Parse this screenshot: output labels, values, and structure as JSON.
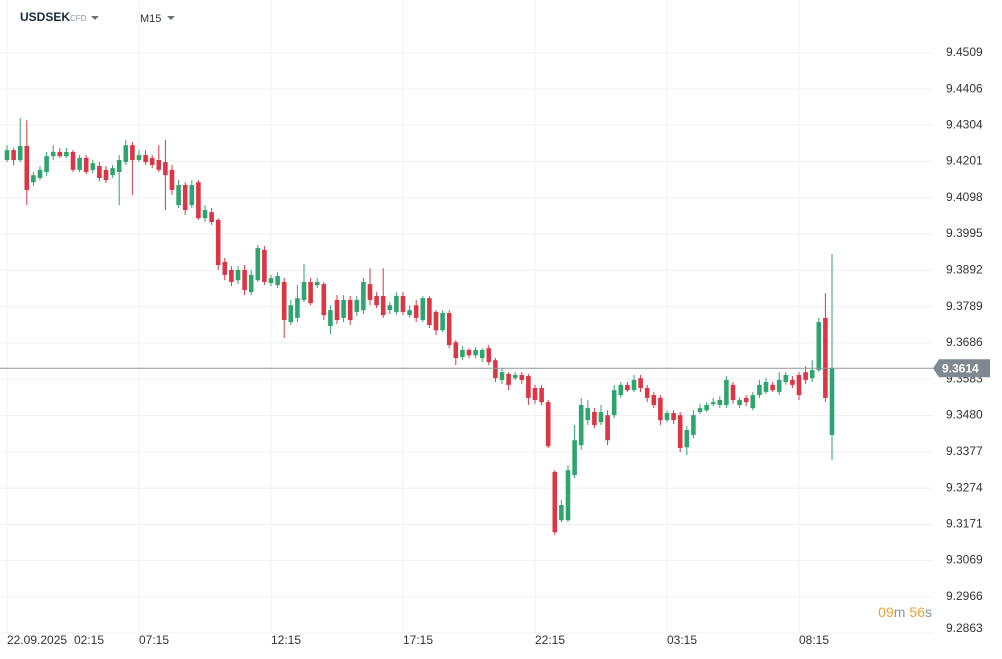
{
  "header": {
    "symbol": "USDSEK",
    "instrument": "CFD",
    "timeframe": "M15"
  },
  "countdown": {
    "minutes": "09",
    "minutes_unit": "m",
    "seconds": "56",
    "seconds_unit": "s"
  },
  "chart_data": {
    "type": "candlestick",
    "date_label": "22.09.2025",
    "x": [
      "02:15",
      null,
      null,
      null,
      null,
      null,
      null,
      null,
      null,
      null,
      null,
      null,
      null,
      null,
      null,
      null,
      null,
      null,
      null,
      null,
      "07:15",
      null,
      null,
      null,
      null,
      null,
      null,
      null,
      null,
      null,
      null,
      null,
      null,
      null,
      null,
      null,
      null,
      null,
      null,
      null,
      "12:15",
      null,
      null,
      null,
      null,
      null,
      null,
      null,
      null,
      null,
      null,
      null,
      null,
      null,
      null,
      null,
      null,
      null,
      null,
      null,
      "17:15",
      null,
      null,
      null,
      null,
      null,
      null,
      null,
      null,
      null,
      null,
      null,
      null,
      null,
      null,
      null,
      null,
      null,
      null,
      null,
      "22:15",
      null,
      null,
      null,
      null,
      null,
      null,
      null,
      null,
      null,
      null,
      null,
      null,
      null,
      null,
      null,
      null,
      null,
      null,
      null,
      "03:15",
      null,
      null,
      null,
      null,
      null,
      null,
      null,
      null,
      null,
      null,
      null,
      null,
      null,
      null,
      null,
      null,
      null,
      null,
      null,
      "08:15",
      null,
      null,
      null,
      null,
      null
    ],
    "open": [
      9.4205,
      9.4233,
      9.4205,
      9.4245,
      9.4142,
      9.4154,
      9.4171,
      9.4216,
      9.4228,
      9.4216,
      9.4228,
      9.4177,
      9.4211,
      9.4177,
      9.4188,
      9.4177,
      9.4162,
      9.4171,
      9.4199,
      9.4247,
      9.4205,
      9.4219,
      9.4211,
      9.4205,
      9.4199,
      9.4177,
      9.4077,
      9.4134,
      9.4077,
      9.4142,
      9.404,
      9.4057,
      9.4035,
      9.3916,
      9.3893,
      9.3864,
      9.3893,
      9.383,
      9.3864,
      9.395,
      9.3856,
      9.385,
      9.3859,
      9.3745,
      9.3757,
      9.3808,
      9.3859,
      9.385,
      9.3853,
      9.3734,
      9.3808,
      9.3757,
      9.3808,
      9.3774,
      9.3779,
      9.3853,
      9.3819,
      9.3819,
      9.3779,
      9.3774,
      9.3819,
      9.3765,
      9.3793,
      9.3751,
      9.3813,
      9.3774,
      9.3722,
      9.3771,
      9.3688,
      9.3646,
      9.3666,
      9.3651,
      9.3643,
      9.3671,
      9.3637,
      9.3581,
      9.3598,
      9.3586,
      9.3595,
      9.3592,
      9.3558,
      9.3558,
      9.3518,
      9.332,
      9.3183,
      9.3183,
      9.3311,
      9.3396,
      9.3467,
      9.349,
      9.3461,
      9.3481,
      9.3481,
      9.3538,
      9.3567,
      9.3552,
      9.3586,
      9.3558,
      9.3538,
      9.353,
      9.3467,
      9.3487,
      9.3481,
      9.339,
      9.3425,
      9.349,
      9.3495,
      9.3512,
      9.351,
      9.351,
      9.3567,
      9.351,
      9.353,
      9.3501,
      9.3538,
      9.3547,
      9.3567,
      9.3547,
      9.3575,
      9.3581,
      9.3595,
      9.3603,
      9.3586,
      9.3609,
      9.3757,
      9.3425
    ],
    "high": [
      9.4247,
      9.4239,
      9.4324,
      9.4318,
      9.4171,
      9.4188,
      9.4228,
      9.4247,
      9.4239,
      9.4239,
      9.4233,
      9.4219,
      9.4219,
      9.4205,
      9.4199,
      9.4188,
      9.4191,
      9.4219,
      9.4262,
      9.4256,
      9.4233,
      9.4233,
      9.4219,
      9.4247,
      9.4262,
      9.4191,
      9.4148,
      9.4142,
      9.4148,
      9.4148,
      9.4077,
      9.4069,
      9.404,
      9.3927,
      9.3904,
      9.3904,
      9.3907,
      9.3893,
      9.3964,
      9.3961,
      9.3879,
      9.3887,
      9.387,
      9.3808,
      9.385,
      9.391,
      9.387,
      9.387,
      9.3859,
      9.3793,
      9.3822,
      9.3822,
      9.3819,
      9.3819,
      9.387,
      9.3898,
      9.383,
      9.3898,
      9.3802,
      9.383,
      9.383,
      9.3793,
      9.3808,
      9.3819,
      9.3819,
      9.3779,
      9.3779,
      9.3779,
      9.3694,
      9.3677,
      9.3671,
      9.3674,
      9.3671,
      9.368,
      9.3643,
      9.3615,
      9.3603,
      9.3603,
      9.3603,
      9.3598,
      9.3567,
      9.3567,
      9.3524,
      9.3325,
      9.324,
      9.3339,
      9.3453,
      9.353,
      9.3524,
      9.3501,
      9.351,
      9.3495,
      9.3567,
      9.3575,
      9.3575,
      9.3595,
      9.3595,
      9.3567,
      9.3547,
      9.3538,
      9.3495,
      9.3495,
      9.349,
      9.345,
      9.3495,
      9.3512,
      9.3518,
      9.353,
      9.3535,
      9.3592,
      9.3575,
      9.3532,
      9.3538,
      9.3547,
      9.3581,
      9.3586,
      9.3575,
      9.3603,
      9.3603,
      9.3592,
      9.3603,
      9.362,
      9.3637,
      9.3757,
      9.3827,
      9.3938
    ],
    "low": [
      9.4199,
      9.4191,
      9.4199,
      9.4077,
      9.4131,
      9.4148,
      9.416,
      9.4205,
      9.4211,
      9.4211,
      9.4171,
      9.4171,
      9.4165,
      9.4168,
      9.4145,
      9.414,
      9.4154,
      9.4077,
      9.4191,
      9.4106,
      9.4199,
      9.4191,
      9.4182,
      9.4171,
      9.4063,
      9.4106,
      9.4069,
      9.4049,
      9.4069,
      9.4035,
      9.4029,
      9.4021,
      9.3893,
      9.3864,
      9.3847,
      9.3853,
      9.3822,
      9.3822,
      9.3859,
      9.385,
      9.3847,
      9.3842,
      9.37,
      9.3737,
      9.3745,
      9.3802,
      9.3793,
      9.3842,
      9.3751,
      9.3711,
      9.374,
      9.3745,
      9.3737,
      9.3762,
      9.3768,
      9.3793,
      9.3785,
      9.3757,
      9.3768,
      9.3765,
      9.3765,
      9.3757,
      9.3745,
      9.3745,
      9.3728,
      9.3708,
      9.3717,
      9.3671,
      9.3623,
      9.3637,
      9.3643,
      9.3643,
      9.3632,
      9.3623,
      9.3575,
      9.357,
      9.3552,
      9.3581,
      9.357,
      9.351,
      9.3513,
      9.351,
      9.3388,
      9.3141,
      9.3178,
      9.3178,
      9.3302,
      9.3382,
      9.3453,
      9.3444,
      9.3453,
      9.3396,
      9.3473,
      9.353,
      9.3547,
      9.3547,
      9.3547,
      9.3518,
      9.3501,
      9.3453,
      9.3461,
      9.3456,
      9.3376,
      9.3368,
      9.3416,
      9.3484,
      9.349,
      9.3507,
      9.3501,
      9.3501,
      9.3513,
      9.3501,
      9.3507,
      9.3495,
      9.353,
      9.3541,
      9.3547,
      9.3538,
      9.3567,
      9.3558,
      9.3524,
      9.357,
      9.3575,
      9.3603,
      9.3518,
      9.3354
    ],
    "close": [
      9.4233,
      9.4205,
      9.4245,
      9.412,
      9.4162,
      9.4177,
      9.4216,
      9.4228,
      9.4216,
      9.4228,
      9.4177,
      9.4211,
      9.4171,
      9.4196,
      9.4154,
      9.4148,
      9.4182,
      9.4205,
      9.4247,
      9.4205,
      9.4219,
      9.4199,
      9.4191,
      9.4177,
      9.4162,
      9.412,
      9.4134,
      9.4063,
      9.4134,
      9.404,
      9.4063,
      9.4029,
      9.3907,
      9.3879,
      9.3859,
      9.3893,
      9.3836,
      9.3879,
      9.3955,
      9.3859,
      9.387,
      9.3876,
      9.3751,
      9.3793,
      9.3813,
      9.3859,
      9.3799,
      9.3859,
      9.3765,
      9.3779,
      9.3751,
      9.3808,
      9.3751,
      9.3808,
      9.3859,
      9.3808,
      9.3793,
      9.3765,
      9.3793,
      9.3819,
      9.3774,
      9.3779,
      9.3757,
      9.3813,
      9.3737,
      9.3722,
      9.3771,
      9.368,
      9.3643,
      9.3666,
      9.3651,
      9.3666,
      9.3666,
      9.3632,
      9.3586,
      9.3603,
      9.3567,
      9.3595,
      9.3581,
      9.353,
      9.3524,
      9.3518,
      9.3393,
      9.3149,
      9.3226,
      9.3325,
      9.341,
      9.351,
      9.3501,
      9.3453,
      9.349,
      9.341,
      9.3552,
      9.3567,
      9.3552,
      9.3581,
      9.3558,
      9.353,
      9.351,
      9.3467,
      9.3487,
      9.3467,
      9.3388,
      9.3439,
      9.3481,
      9.3501,
      9.351,
      9.3518,
      9.3524,
      9.3581,
      9.3524,
      9.3524,
      9.3518,
      9.3538,
      9.3567,
      9.3575,
      9.3552,
      9.3581,
      9.3595,
      9.3567,
      9.3538,
      9.3581,
      9.3609,
      9.3745,
      9.353,
      9.3614
    ],
    "up_color": "#2ea56e",
    "down_color": "#dc3545",
    "last_price": 9.3614,
    "ylim": [
      9.2863,
      9.4659
    ],
    "yticks": [
      9.4509,
      9.4406,
      9.4304,
      9.4201,
      9.4098,
      9.3995,
      9.3892,
      9.3789,
      9.3686,
      9.3583,
      {
        "value": 9.348,
        "label": "9.3480"
      },
      9.3377,
      9.3274,
      9.3171,
      9.3069,
      9.2966,
      9.2863
    ],
    "grid": true
  }
}
